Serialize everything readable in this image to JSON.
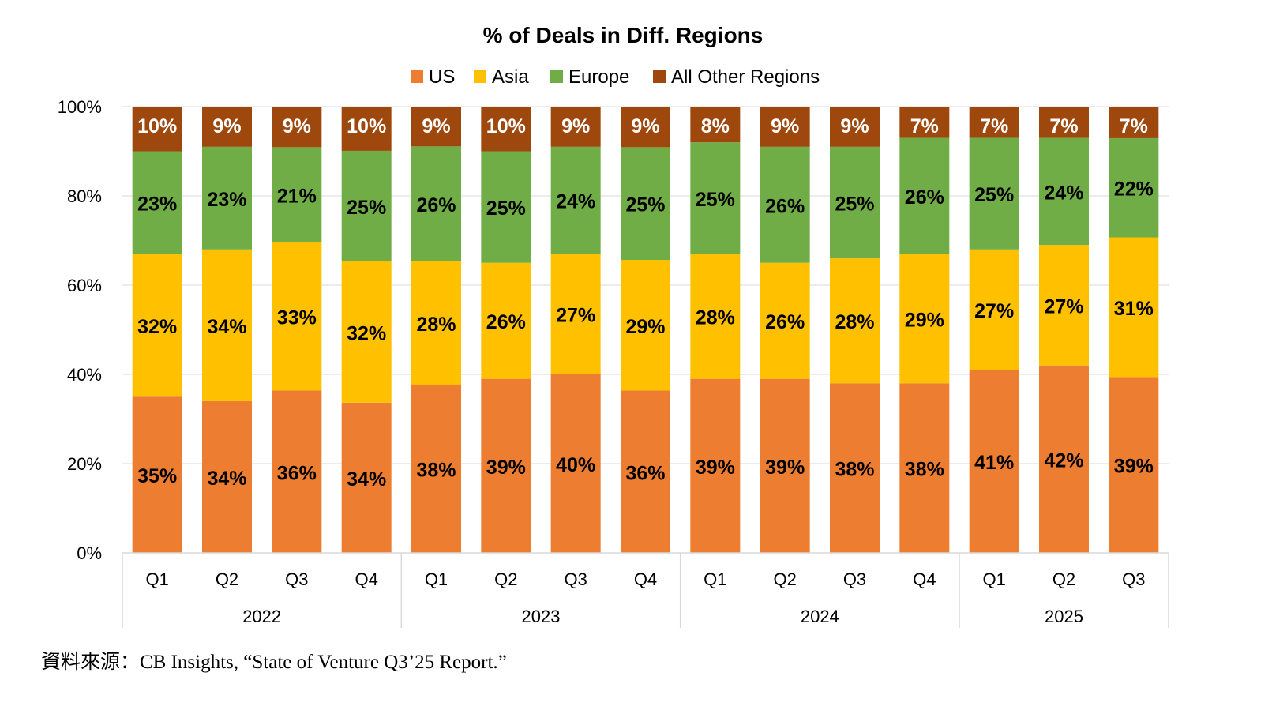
{
  "chart_data": {
    "type": "bar",
    "stacked": true,
    "title": "% of Deals in Diff. Regions",
    "categories": [
      "Q1",
      "Q2",
      "Q3",
      "Q4",
      "Q1",
      "Q2",
      "Q3",
      "Q4",
      "Q1",
      "Q2",
      "Q3",
      "Q4",
      "Q1",
      "Q2",
      "Q3"
    ],
    "groups": [
      {
        "label": "2022",
        "count": 4
      },
      {
        "label": "2023",
        "count": 4
      },
      {
        "label": "2024",
        "count": 4
      },
      {
        "label": "2025",
        "count": 3
      }
    ],
    "series": [
      {
        "name": "US",
        "color": "#ED7D31",
        "label_color": "#000000",
        "values": [
          35,
          34,
          36,
          34,
          38,
          39,
          40,
          36,
          39,
          39,
          38,
          38,
          41,
          42,
          39
        ]
      },
      {
        "name": "Asia",
        "color": "#FFC000",
        "label_color": "#000000",
        "values": [
          32,
          34,
          33,
          32,
          28,
          26,
          27,
          29,
          28,
          26,
          28,
          29,
          27,
          27,
          31
        ]
      },
      {
        "name": "Europe",
        "color": "#70AD47",
        "label_color": "#000000",
        "values": [
          23,
          23,
          21,
          25,
          26,
          25,
          24,
          25,
          25,
          26,
          25,
          26,
          25,
          24,
          22
        ]
      },
      {
        "name": "All Other Regions",
        "color": "#9E480E",
        "label_color": "#FFFFFF",
        "values": [
          10,
          9,
          9,
          10,
          9,
          10,
          9,
          9,
          8,
          9,
          9,
          7,
          7,
          7,
          7
        ]
      }
    ],
    "ylim": [
      0,
      100
    ],
    "yticks": [
      "0%",
      "20%",
      "40%",
      "60%",
      "80%",
      "100%"
    ],
    "grid": true,
    "legend": "top",
    "value_suffix": "%"
  },
  "source": "資料來源：CB Insights, “State of Venture Q3’25 Report.”"
}
